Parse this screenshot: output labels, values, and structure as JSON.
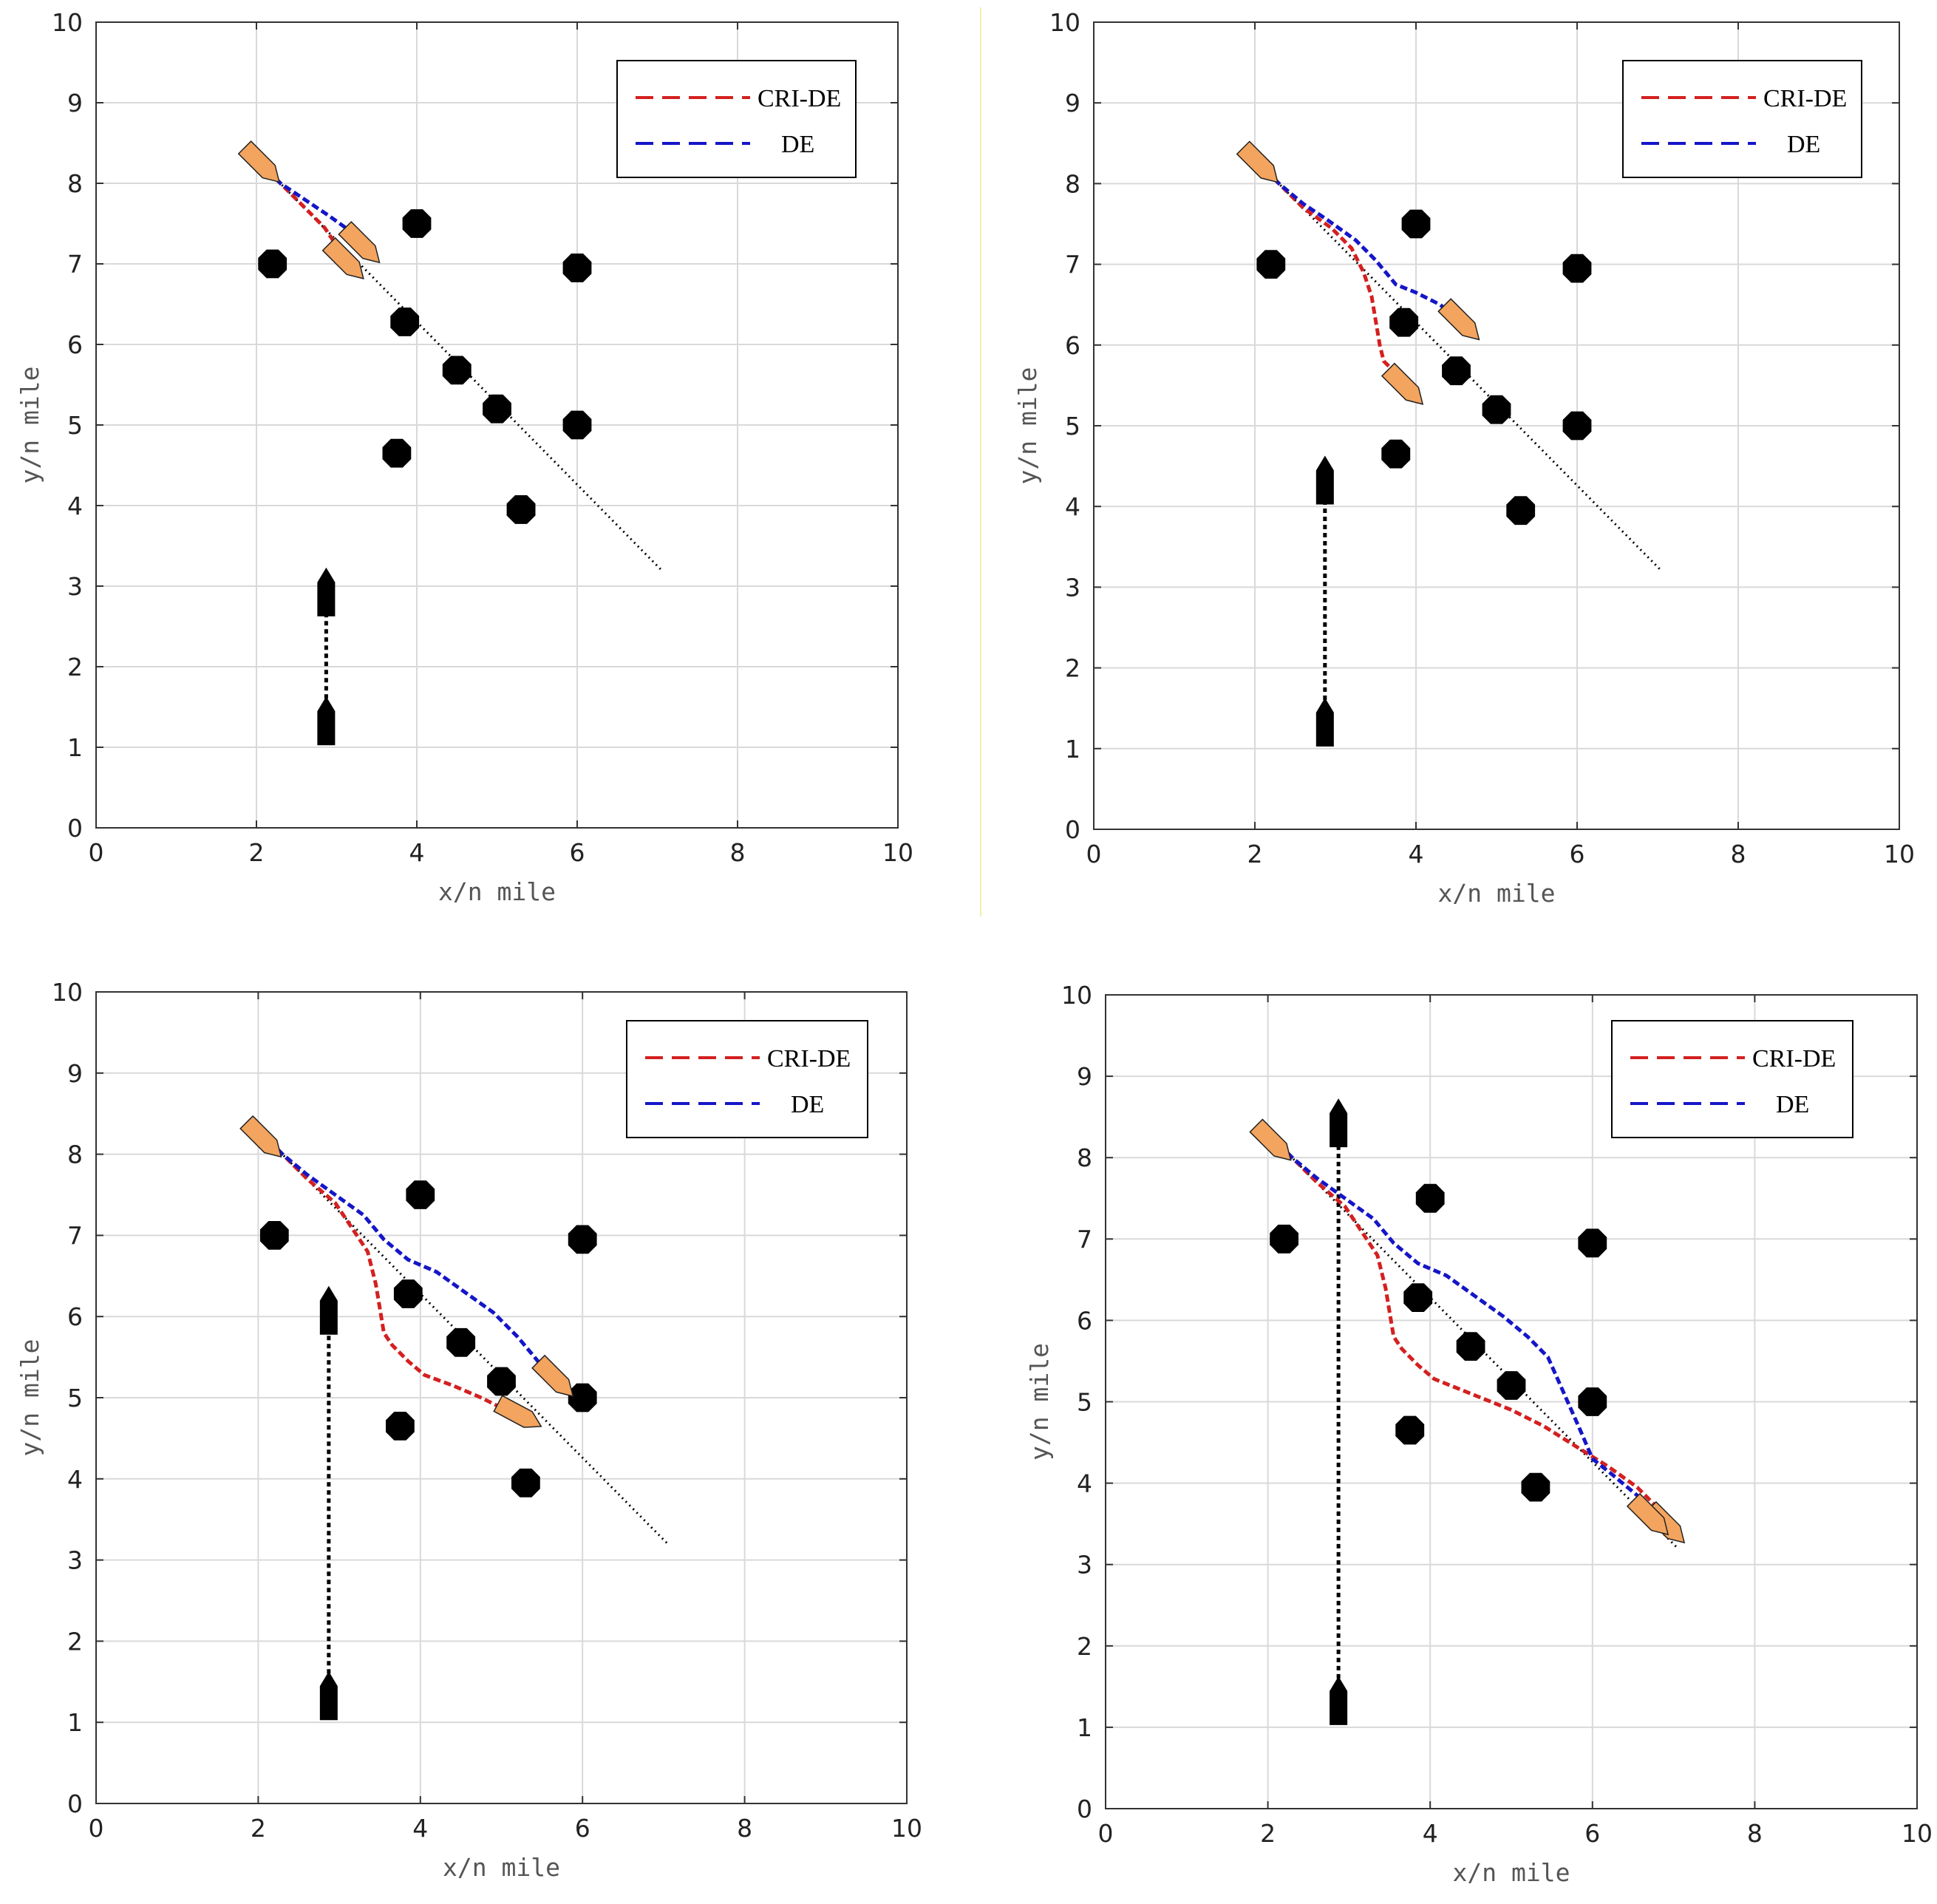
{
  "figure_style": {
    "colors": {
      "cri_de": "#d42020",
      "de": "#1515c8",
      "reference": "#000000",
      "obstacle": "#000000",
      "own_ship": "#f3a45e",
      "target_ship": "#000000",
      "grid": "#d9d9d9"
    }
  },
  "chart_data": [
    {
      "type": "line",
      "panel": "top-left",
      "xlabel": "x/n mile",
      "ylabel": "y/n mile",
      "xlim": [
        0,
        10
      ],
      "ylim": [
        0,
        10
      ],
      "xticks": [
        0,
        2,
        4,
        6,
        8,
        10
      ],
      "yticks": [
        0,
        1,
        2,
        3,
        4,
        5,
        6,
        7,
        8,
        9,
        10
      ],
      "grid": true,
      "legend": {
        "position": "top-right",
        "entries": [
          "CRI-DE",
          "DE"
        ]
      },
      "series": [
        {
          "name": "CRI-DE",
          "style": "dashed",
          "x": [
            2.05,
            2.3,
            2.6,
            2.85,
            3.05
          ],
          "y": [
            8.25,
            8.0,
            7.7,
            7.45,
            7.15
          ]
        },
        {
          "name": "DE",
          "style": "dashed",
          "x": [
            2.05,
            2.3,
            2.6,
            2.9,
            3.25
          ],
          "y": [
            8.25,
            8.0,
            7.8,
            7.6,
            7.35
          ]
        }
      ],
      "reference_line": {
        "name": "planned-route",
        "x": [
          2.0,
          7.05
        ],
        "y": [
          8.3,
          3.2
        ]
      },
      "obstacles": [
        {
          "x": 2.2,
          "y": 7.0
        },
        {
          "x": 4.0,
          "y": 7.5
        },
        {
          "x": 6.0,
          "y": 6.95
        },
        {
          "x": 3.85,
          "y": 6.28
        },
        {
          "x": 4.5,
          "y": 5.68
        },
        {
          "x": 5.0,
          "y": 5.2
        },
        {
          "x": 6.0,
          "y": 5.0
        },
        {
          "x": 3.75,
          "y": 4.65
        },
        {
          "x": 5.3,
          "y": 3.95
        }
      ],
      "target_ship": {
        "track_x": [
          2.87,
          2.87
        ],
        "track_y": [
          1.3,
          2.9
        ],
        "start": {
          "x": 2.87,
          "y": 1.3
        },
        "end": {
          "x": 2.87,
          "y": 2.9
        },
        "heading_deg": 0
      },
      "own_ships": [
        {
          "x": 2.05,
          "y": 8.25,
          "heading_deg": 135
        },
        {
          "x": 3.3,
          "y": 7.25,
          "heading_deg": 135
        },
        {
          "x": 3.1,
          "y": 7.05,
          "heading_deg": 135
        }
      ]
    },
    {
      "type": "line",
      "panel": "top-right",
      "xlabel": "x/n mile",
      "ylabel": "y/n mile",
      "xlim": [
        0,
        10
      ],
      "ylim": [
        0,
        10
      ],
      "xticks": [
        0,
        2,
        4,
        6,
        8,
        10
      ],
      "yticks": [
        0,
        1,
        2,
        3,
        4,
        5,
        6,
        7,
        8,
        9,
        10
      ],
      "grid": true,
      "legend": {
        "position": "top-right",
        "entries": [
          "CRI-DE",
          "DE"
        ]
      },
      "series": [
        {
          "name": "CRI-DE",
          "style": "dashed",
          "x": [
            2.05,
            2.3,
            2.6,
            2.95,
            3.2,
            3.35,
            3.45,
            3.5,
            3.55,
            3.6,
            3.75,
            3.85
          ],
          "y": [
            8.25,
            8.0,
            7.7,
            7.45,
            7.2,
            6.9,
            6.6,
            6.3,
            6.0,
            5.8,
            5.65,
            5.5
          ]
        },
        {
          "name": "DE",
          "style": "dashed",
          "x": [
            2.05,
            2.3,
            2.6,
            2.9,
            3.25,
            3.5,
            3.75,
            4.0,
            4.3,
            4.55
          ],
          "y": [
            8.25,
            8.0,
            7.75,
            7.55,
            7.3,
            7.05,
            6.75,
            6.65,
            6.5,
            6.3
          ]
        }
      ],
      "reference_line": {
        "name": "planned-route",
        "x": [
          2.0,
          7.05
        ],
        "y": [
          8.3,
          3.2
        ]
      },
      "obstacles": [
        {
          "x": 2.2,
          "y": 7.0
        },
        {
          "x": 4.0,
          "y": 7.5
        },
        {
          "x": 6.0,
          "y": 6.95
        },
        {
          "x": 3.85,
          "y": 6.28
        },
        {
          "x": 4.5,
          "y": 5.68
        },
        {
          "x": 5.0,
          "y": 5.2
        },
        {
          "x": 6.0,
          "y": 5.0
        },
        {
          "x": 3.75,
          "y": 4.65
        },
        {
          "x": 5.3,
          "y": 3.95
        }
      ],
      "target_ship": {
        "track_x": [
          2.87,
          2.87
        ],
        "track_y": [
          1.3,
          4.3
        ],
        "start": {
          "x": 2.87,
          "y": 1.3
        },
        "end": {
          "x": 2.87,
          "y": 4.3
        },
        "heading_deg": 0
      },
      "own_ships": [
        {
          "x": 2.05,
          "y": 8.25,
          "heading_deg": 135
        },
        {
          "x": 4.55,
          "y": 6.3,
          "heading_deg": 135
        },
        {
          "x": 3.85,
          "y": 5.5,
          "heading_deg": 135
        }
      ]
    },
    {
      "type": "line",
      "panel": "bottom-left",
      "xlabel": "x/n mile",
      "ylabel": "y/n mile",
      "xlim": [
        0,
        10
      ],
      "ylim": [
        0,
        10
      ],
      "xticks": [
        0,
        2,
        4,
        6,
        8,
        10
      ],
      "yticks": [
        0,
        1,
        2,
        3,
        4,
        5,
        6,
        7,
        8,
        9,
        10
      ],
      "grid": true,
      "legend": {
        "position": "top-right",
        "entries": [
          "CRI-DE",
          "DE"
        ]
      },
      "series": [
        {
          "name": "CRI-DE",
          "style": "dashed",
          "x": [
            2.05,
            2.3,
            2.6,
            2.95,
            3.15,
            3.35,
            3.45,
            3.5,
            3.55,
            3.65,
            3.85,
            4.05,
            4.4,
            4.75,
            5.05,
            5.3
          ],
          "y": [
            8.25,
            8.0,
            7.7,
            7.4,
            7.1,
            6.8,
            6.4,
            6.1,
            5.8,
            5.65,
            5.45,
            5.28,
            5.15,
            5.0,
            4.85,
            4.75
          ]
        },
        {
          "name": "DE",
          "style": "dashed",
          "x": [
            2.05,
            2.3,
            2.6,
            2.95,
            3.3,
            3.55,
            3.85,
            4.2,
            4.55,
            4.9,
            5.2,
            5.45,
            5.65
          ],
          "y": [
            8.25,
            8.0,
            7.75,
            7.5,
            7.25,
            6.95,
            6.7,
            6.55,
            6.3,
            6.05,
            5.75,
            5.45,
            5.25
          ]
        }
      ],
      "reference_line": {
        "name": "planned-route",
        "x": [
          2.0,
          7.05
        ],
        "y": [
          8.3,
          3.2
        ]
      },
      "obstacles": [
        {
          "x": 2.2,
          "y": 7.0
        },
        {
          "x": 4.0,
          "y": 7.5
        },
        {
          "x": 6.0,
          "y": 6.95
        },
        {
          "x": 3.85,
          "y": 6.28
        },
        {
          "x": 4.5,
          "y": 5.68
        },
        {
          "x": 5.0,
          "y": 5.2
        },
        {
          "x": 6.0,
          "y": 5.0
        },
        {
          "x": 3.75,
          "y": 4.65
        },
        {
          "x": 5.3,
          "y": 3.95
        }
      ],
      "target_ship": {
        "track_x": [
          2.87,
          2.87
        ],
        "track_y": [
          1.3,
          6.05
        ],
        "start": {
          "x": 2.87,
          "y": 1.3
        },
        "end": {
          "x": 2.87,
          "y": 6.05
        },
        "heading_deg": 0
      },
      "own_ships": [
        {
          "x": 2.05,
          "y": 8.2,
          "heading_deg": 135
        },
        {
          "x": 5.65,
          "y": 5.25,
          "heading_deg": 135
        },
        {
          "x": 5.2,
          "y": 4.8,
          "heading_deg": 118
        }
      ]
    },
    {
      "type": "line",
      "panel": "bottom-right",
      "xlabel": "x/n mile",
      "ylabel": "y/n mile",
      "xlim": [
        0,
        10
      ],
      "ylim": [
        0,
        10
      ],
      "xticks": [
        0,
        2,
        4,
        6,
        8,
        10
      ],
      "yticks": [
        0,
        1,
        2,
        3,
        4,
        5,
        6,
        7,
        8,
        9,
        10
      ],
      "grid": true,
      "legend": {
        "position": "top-right",
        "entries": [
          "CRI-DE",
          "DE"
        ]
      },
      "series": [
        {
          "name": "CRI-DE",
          "style": "dashed",
          "x": [
            2.05,
            2.3,
            2.6,
            2.95,
            3.15,
            3.35,
            3.45,
            3.5,
            3.55,
            3.65,
            3.85,
            4.05,
            4.5,
            5.0,
            5.4,
            5.8,
            6.2,
            6.55,
            6.8,
            7.0
          ],
          "y": [
            8.25,
            8.0,
            7.7,
            7.4,
            7.1,
            6.8,
            6.4,
            6.1,
            5.8,
            5.65,
            5.45,
            5.28,
            5.1,
            4.9,
            4.7,
            4.45,
            4.2,
            3.95,
            3.7,
            3.4
          ]
        },
        {
          "name": "DE",
          "style": "dashed",
          "x": [
            2.05,
            2.3,
            2.6,
            2.95,
            3.3,
            3.55,
            3.85,
            4.2,
            4.55,
            4.9,
            5.2,
            5.45,
            5.65,
            5.85,
            6.0,
            6.25,
            6.55,
            6.8,
            7.0
          ],
          "y": [
            8.25,
            8.0,
            7.75,
            7.5,
            7.25,
            6.95,
            6.7,
            6.55,
            6.3,
            6.05,
            5.8,
            5.55,
            5.1,
            4.65,
            4.3,
            4.1,
            3.85,
            3.6,
            3.35
          ]
        }
      ],
      "reference_line": {
        "name": "planned-route",
        "x": [
          2.0,
          7.05
        ],
        "y": [
          8.3,
          3.2
        ]
      },
      "obstacles": [
        {
          "x": 2.2,
          "y": 7.0
        },
        {
          "x": 4.0,
          "y": 7.5
        },
        {
          "x": 6.0,
          "y": 6.95
        },
        {
          "x": 3.85,
          "y": 6.28
        },
        {
          "x": 4.5,
          "y": 5.68
        },
        {
          "x": 5.0,
          "y": 5.2
        },
        {
          "x": 6.0,
          "y": 5.0
        },
        {
          "x": 3.75,
          "y": 4.65
        },
        {
          "x": 5.3,
          "y": 3.95
        }
      ],
      "target_ship": {
        "track_x": [
          2.87,
          2.87
        ],
        "track_y": [
          1.3,
          8.4
        ],
        "start": {
          "x": 2.87,
          "y": 1.3
        },
        "end": {
          "x": 2.87,
          "y": 8.4
        },
        "heading_deg": 0
      },
      "own_ships": [
        {
          "x": 2.05,
          "y": 8.2,
          "heading_deg": 135
        },
        {
          "x": 6.9,
          "y": 3.5,
          "heading_deg": 135
        },
        {
          "x": 6.7,
          "y": 3.6,
          "heading_deg": 135
        }
      ]
    }
  ]
}
